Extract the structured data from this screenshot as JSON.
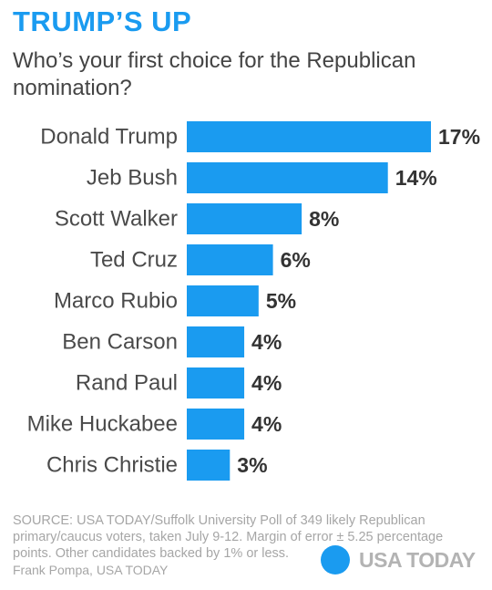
{
  "header": {
    "headline": "TRUMP’S UP",
    "subtitle": "Who’s your first choice for the Republican nomination?"
  },
  "chart_data": {
    "type": "bar",
    "orientation": "horizontal",
    "categories": [
      "Donald Trump",
      "Jeb Bush",
      "Scott Walker",
      "Ted Cruz",
      "Marco Rubio",
      "Ben Carson",
      "Rand Paul",
      "Mike Huckabee",
      "Chris Christie"
    ],
    "values": [
      17,
      14,
      8,
      6,
      5,
      4,
      4,
      4,
      3
    ],
    "value_labels": [
      "17%",
      "14%",
      "8%",
      "6%",
      "5%",
      "4%",
      "4%",
      "4%",
      "3%"
    ],
    "unit": "%",
    "title": "Who’s your first choice for the Republican nomination?",
    "xlim": [
      0,
      17
    ],
    "grid": false,
    "bar_color": "#1a9bf0"
  },
  "footer": {
    "source": "SOURCE:  USA TODAY/Suffolk University Poll of 349 likely Republican primary/caucus voters, taken July 9-12. Margin of error ± 5.25 percentage points. Other candidates backed by 1% or less.",
    "credit": "Frank Pompa, USA TODAY",
    "logo_text": "USA TODAY",
    "logo_color": "#1a9bf0"
  }
}
